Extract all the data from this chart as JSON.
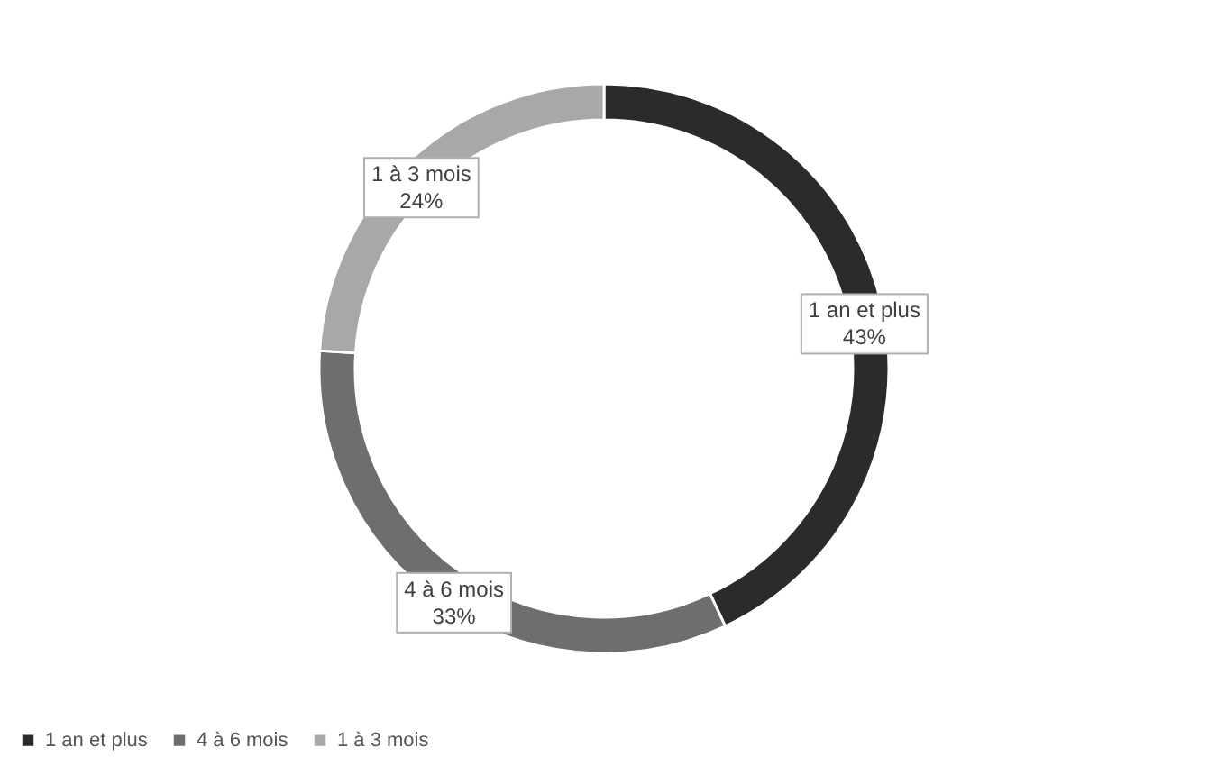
{
  "chart_data": {
    "type": "donut",
    "categories": [
      "1 an et plus",
      "4 à 6 mois",
      "1 à 3 mois"
    ],
    "values": [
      43,
      33,
      24
    ],
    "colors": [
      "#2b2b2b",
      "#6e6e6e",
      "#a8a8a8"
    ],
    "value_labels": [
      "43%",
      "33%",
      "24%"
    ],
    "legend": "bottom"
  }
}
